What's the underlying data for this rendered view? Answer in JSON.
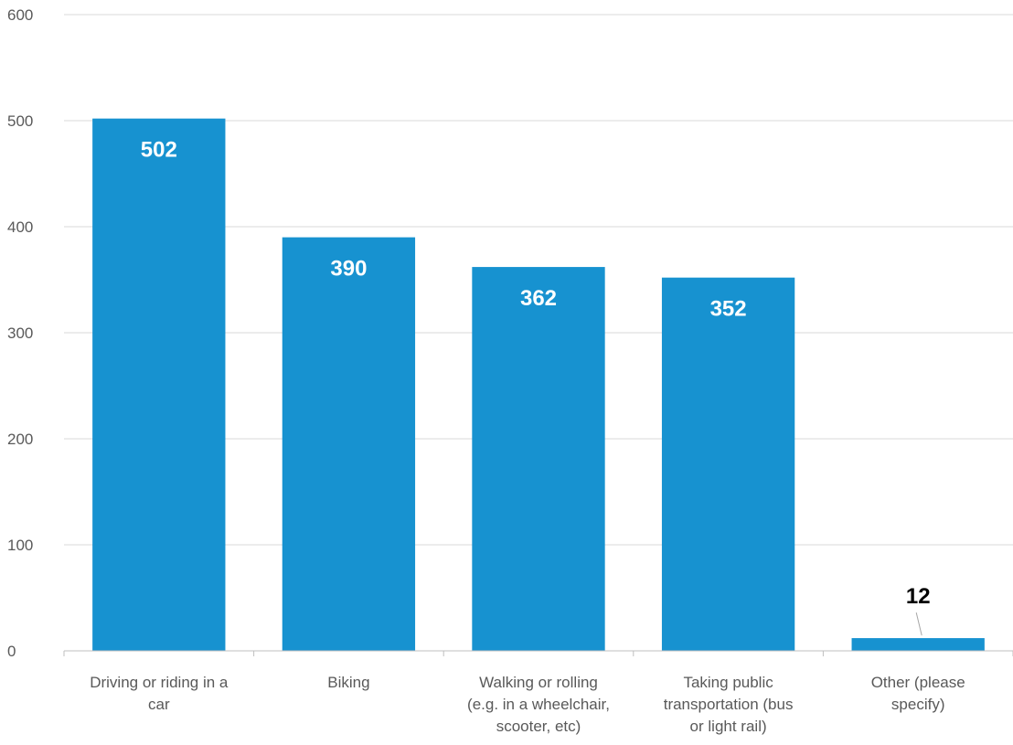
{
  "chart_data": {
    "type": "bar",
    "title": "",
    "xlabel": "",
    "ylabel": "",
    "ylim": [
      0,
      600
    ],
    "yticks": [
      0,
      100,
      200,
      300,
      400,
      500,
      600
    ],
    "grid": true,
    "legend": "none",
    "categories": [
      [
        "Driving or riding in a",
        "car"
      ],
      [
        "Biking"
      ],
      [
        "Walking or rolling",
        "(e.g. in a wheelchair,",
        "scooter, etc)"
      ],
      [
        "Taking public",
        "transportation (bus",
        "or light rail)"
      ],
      [
        "Other (please",
        "specify)"
      ]
    ],
    "values": [
      502,
      390,
      362,
      352,
      12
    ],
    "data_labels": [
      "502",
      "390",
      "362",
      "352",
      "12"
    ],
    "colors": {
      "bar": "#1792d0",
      "grid": "#d9d9d9",
      "axis": "#bfbfbf",
      "inside_label": "#ffffff",
      "outside_label": "#000000"
    }
  }
}
